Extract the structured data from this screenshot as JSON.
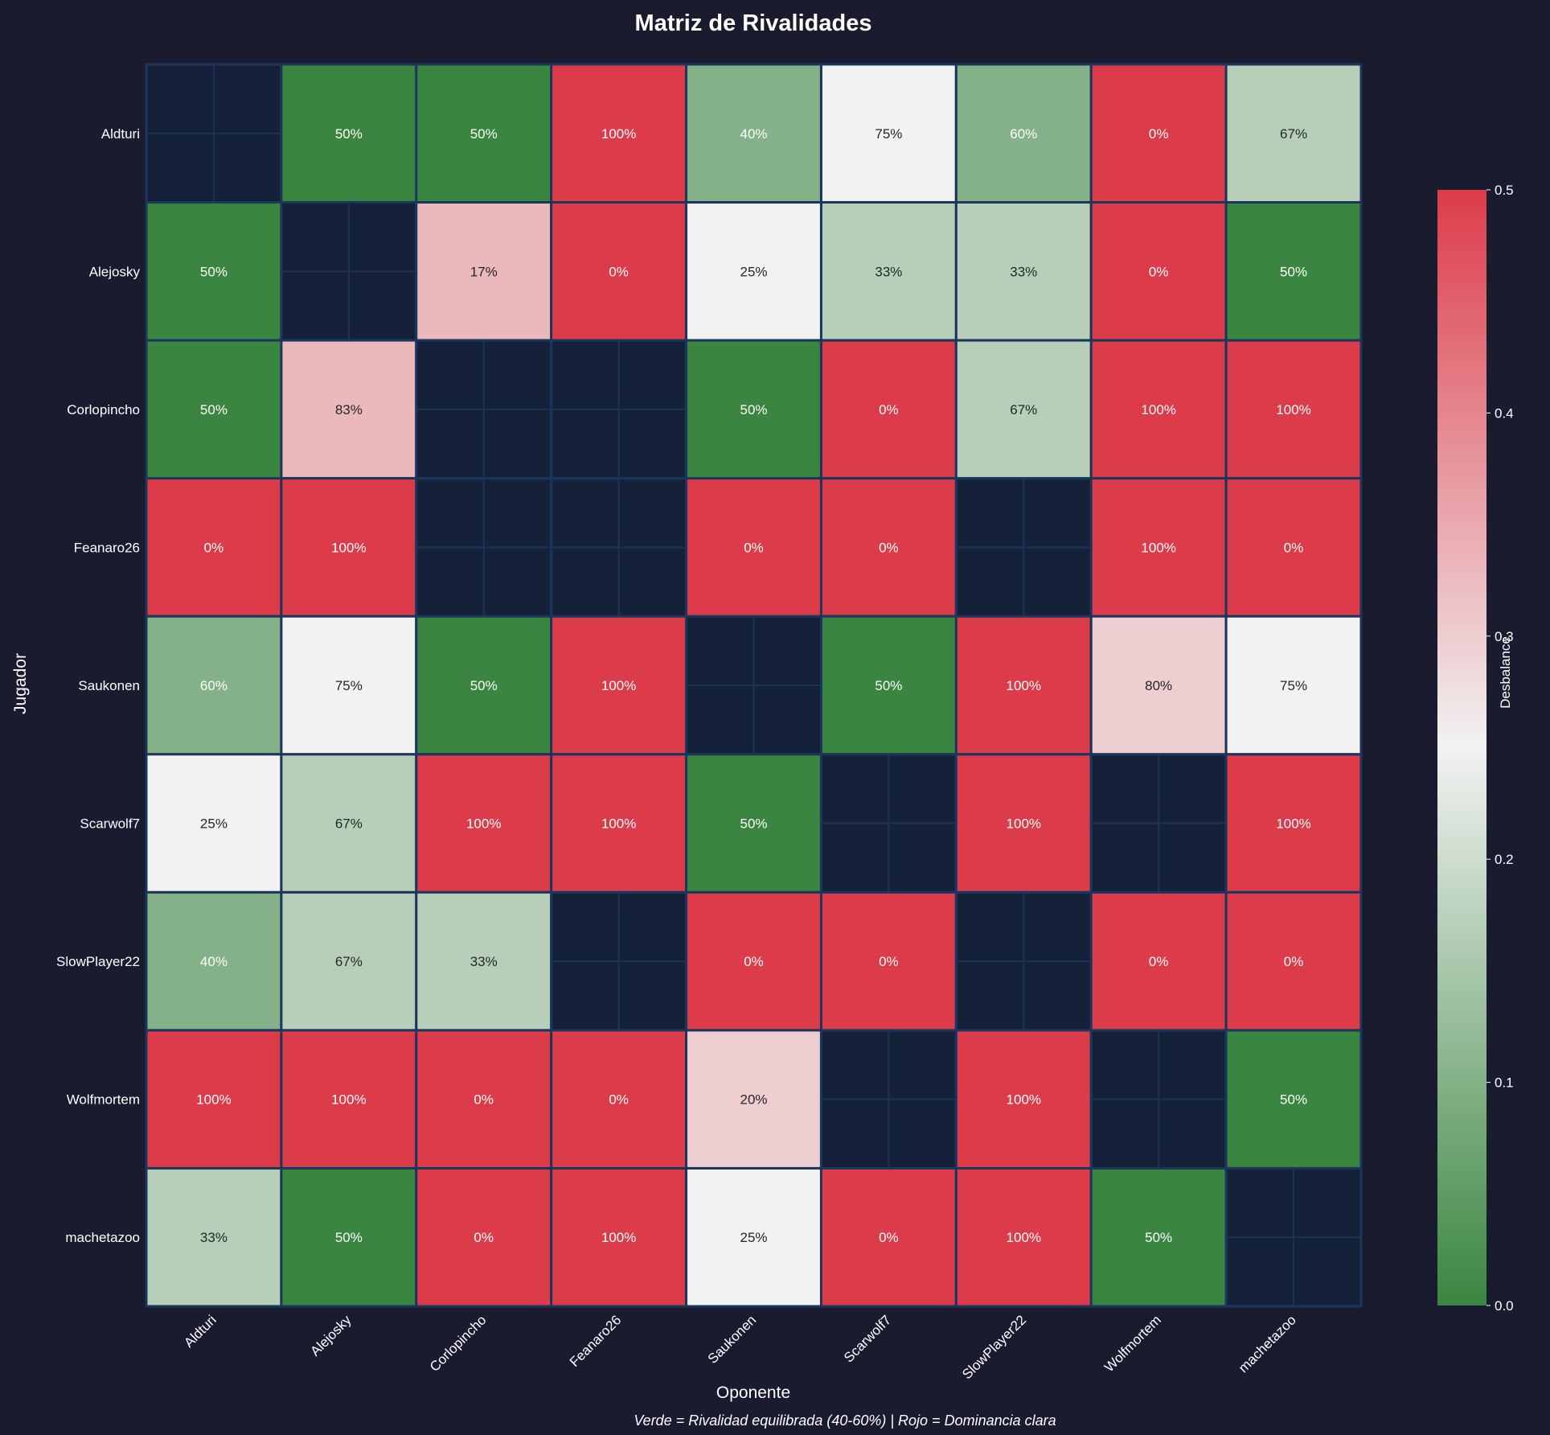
{
  "chart_data": {
    "type": "heatmap",
    "title": "Matriz de Rivalidades",
    "xlabel": "Oponente",
    "ylabel": "Jugador",
    "rows": [
      "Aldturi",
      "Alejosky",
      "Corlopincho",
      "Feanaro26",
      "Saukonen",
      "Scarwolf7",
      "SlowPlayer22",
      "Wolfmortem",
      "machetazoo"
    ],
    "columns": [
      "Aldturi",
      "Alejosky",
      "Corlopincho",
      "Feanaro26",
      "Saukonen",
      "Scarwolf7",
      "SlowPlayer22",
      "Wolfmortem",
      "machetazoo"
    ],
    "values_percent": [
      [
        null,
        50,
        50,
        100,
        40,
        75,
        60,
        0,
        67
      ],
      [
        50,
        null,
        17,
        0,
        25,
        33,
        33,
        0,
        50
      ],
      [
        50,
        83,
        null,
        null,
        50,
        0,
        67,
        100,
        100
      ],
      [
        0,
        100,
        null,
        null,
        0,
        0,
        null,
        100,
        0
      ],
      [
        60,
        75,
        50,
        100,
        null,
        50,
        100,
        80,
        75
      ],
      [
        25,
        67,
        100,
        100,
        50,
        null,
        100,
        null,
        100
      ],
      [
        40,
        67,
        33,
        null,
        0,
        0,
        null,
        0,
        0
      ],
      [
        100,
        100,
        0,
        0,
        20,
        null,
        100,
        null,
        50
      ],
      [
        33,
        50,
        0,
        100,
        25,
        0,
        100,
        50,
        null
      ]
    ],
    "color_metric": "Desbalance = |valor - 50%|",
    "colorbar": {
      "label": "Desbalance",
      "range": [
        0,
        0.5
      ],
      "ticks": [
        "0.0",
        "0.1",
        "0.2",
        "0.3",
        "0.4",
        "0.5"
      ],
      "colors": {
        "low": "#3a8640",
        "mid": "#f2f2f2",
        "high": "#dc3c4a"
      }
    },
    "footnote": "Verde = Rivalidad equilibrada (40-60%) | Rojo = Dominancia clara",
    "grid": true
  },
  "colors": {
    "background": "#1a1b2e",
    "empty_cell": "#152039",
    "cell_edge": "#1b365d"
  }
}
